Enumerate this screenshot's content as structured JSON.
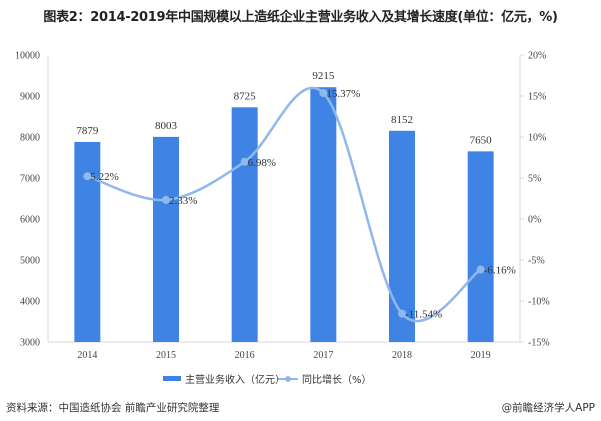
{
  "title": "图表2：2014-2019年中国规模以上造纸企业主营业务收入及其增长速度(单位：亿元，%)",
  "chart_data": {
    "type": "bar+line",
    "title": "图表2：2014-2019年中国规模以上造纸企业主营业务收入及其增长速度(单位：亿元，%)",
    "categories": [
      "2014",
      "2015",
      "2016",
      "2017",
      "2018",
      "2019"
    ],
    "series": [
      {
        "name": "主营业务收入（亿元）",
        "type": "bar",
        "axis": "left",
        "values": [
          7879,
          8003,
          8725,
          9215,
          8152,
          7650
        ],
        "labels": [
          "7879",
          "8003",
          "8725",
          "9215",
          "8152",
          "7650"
        ],
        "color": "#3f84e5"
      },
      {
        "name": "同比增长（%）",
        "type": "line",
        "axis": "right",
        "values": [
          5.22,
          2.33,
          6.98,
          15.37,
          -11.54,
          -6.16
        ],
        "labels": [
          "5.22%",
          "2.33%",
          "6.98%",
          "15.37%",
          "-11.54%",
          "-6.16%"
        ],
        "color": "#8fb8ec"
      }
    ],
    "y_left": {
      "range": [
        3000,
        10000
      ],
      "ticks": [
        "3000",
        "4000",
        "5000",
        "6000",
        "7000",
        "8000",
        "9000",
        "10000"
      ]
    },
    "y_right": {
      "range": [
        -15,
        20
      ],
      "ticks": [
        "-15%",
        "-10%",
        "-5%",
        "0%",
        "5%",
        "10%",
        "15%",
        "20%"
      ]
    },
    "grid": false,
    "legend": "bottom"
  },
  "footer": {
    "source": "资料来源：中国造纸协会 前瞻产业研究院整理",
    "brand": "@前瞻经济学人APP"
  }
}
